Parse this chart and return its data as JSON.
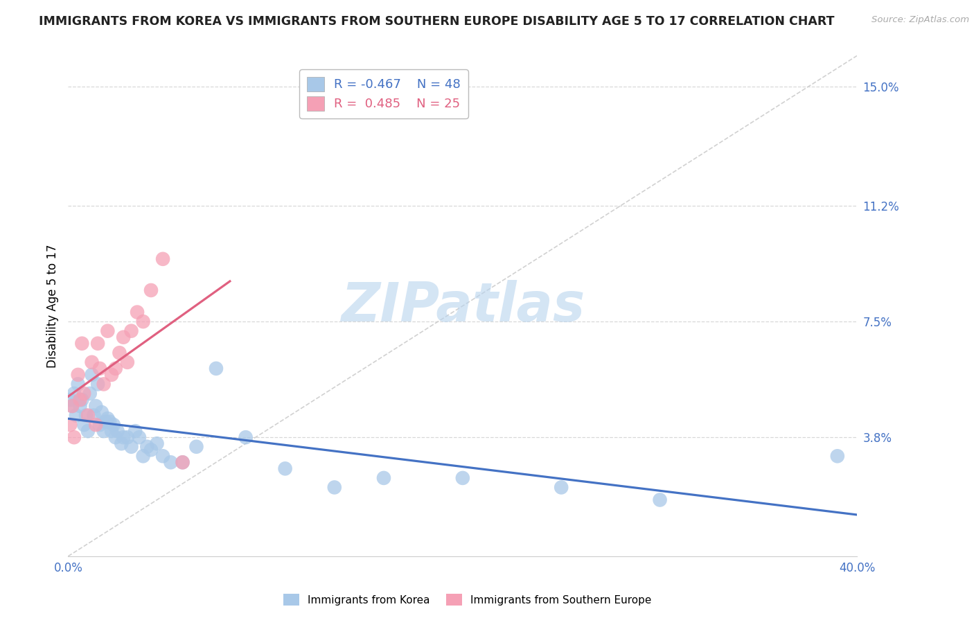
{
  "title": "IMMIGRANTS FROM KOREA VS IMMIGRANTS FROM SOUTHERN EUROPE DISABILITY AGE 5 TO 17 CORRELATION CHART",
  "source": "Source: ZipAtlas.com",
  "ylabel": "Disability Age 5 to 17",
  "y_ticks": [
    0.0,
    0.038,
    0.075,
    0.112,
    0.15
  ],
  "y_tick_labels": [
    "",
    "3.8%",
    "7.5%",
    "11.2%",
    "15.0%"
  ],
  "x_min": 0.0,
  "x_max": 0.4,
  "y_min": 0.0,
  "y_max": 0.16,
  "color_korea": "#a8c8e8",
  "color_s_europe": "#f5a0b5",
  "color_korea_line": "#4472c4",
  "color_s_europe_line": "#e06080",
  "color_diagonal": "#cccccc",
  "color_axis_labels": "#4472c4",
  "korea_x": [
    0.001,
    0.002,
    0.003,
    0.004,
    0.005,
    0.006,
    0.007,
    0.008,
    0.009,
    0.01,
    0.011,
    0.012,
    0.013,
    0.014,
    0.015,
    0.016,
    0.017,
    0.018,
    0.019,
    0.02,
    0.021,
    0.022,
    0.023,
    0.024,
    0.025,
    0.027,
    0.028,
    0.03,
    0.032,
    0.034,
    0.036,
    0.038,
    0.04,
    0.042,
    0.045,
    0.048,
    0.052,
    0.058,
    0.065,
    0.075,
    0.09,
    0.11,
    0.135,
    0.16,
    0.2,
    0.25,
    0.3,
    0.39
  ],
  "korea_y": [
    0.05,
    0.048,
    0.052,
    0.045,
    0.055,
    0.048,
    0.05,
    0.042,
    0.045,
    0.04,
    0.052,
    0.058,
    0.045,
    0.048,
    0.055,
    0.042,
    0.046,
    0.04,
    0.043,
    0.044,
    0.043,
    0.04,
    0.042,
    0.038,
    0.04,
    0.036,
    0.038,
    0.038,
    0.035,
    0.04,
    0.038,
    0.032,
    0.035,
    0.034,
    0.036,
    0.032,
    0.03,
    0.03,
    0.035,
    0.06,
    0.038,
    0.028,
    0.022,
    0.025,
    0.025,
    0.022,
    0.018,
    0.032
  ],
  "s_europe_x": [
    0.001,
    0.002,
    0.003,
    0.005,
    0.006,
    0.007,
    0.008,
    0.01,
    0.012,
    0.014,
    0.015,
    0.016,
    0.018,
    0.02,
    0.022,
    0.024,
    0.026,
    0.028,
    0.03,
    0.032,
    0.035,
    0.038,
    0.042,
    0.048,
    0.058
  ],
  "s_europe_y": [
    0.042,
    0.048,
    0.038,
    0.058,
    0.05,
    0.068,
    0.052,
    0.045,
    0.062,
    0.042,
    0.068,
    0.06,
    0.055,
    0.072,
    0.058,
    0.06,
    0.065,
    0.07,
    0.062,
    0.072,
    0.078,
    0.075,
    0.085,
    0.095,
    0.03
  ],
  "watermark_text": "ZIPatlas",
  "background_color": "#ffffff",
  "grid_color": "#d8d8d8",
  "legend_r1": "R = -0.467",
  "legend_n1": "N = 48",
  "legend_r2": "R =  0.485",
  "legend_n2": "N = 25",
  "legend_fontsize": 13,
  "title_fontsize": 12.5,
  "axis_label_fontsize": 12,
  "axis_tick_fontsize": 12
}
